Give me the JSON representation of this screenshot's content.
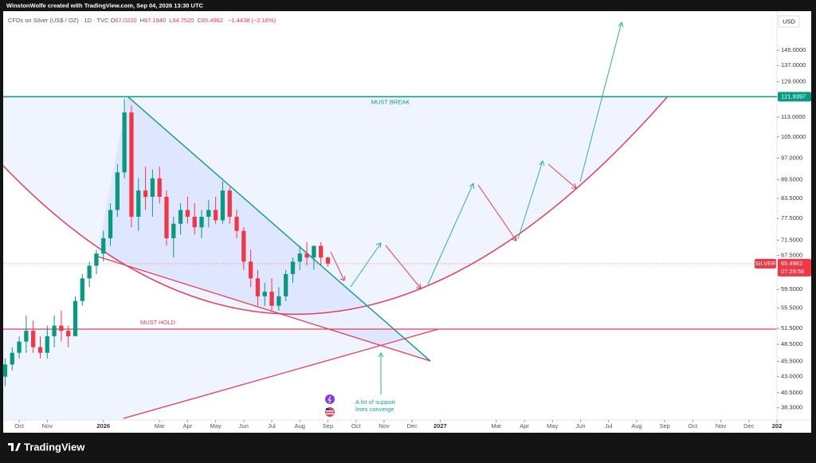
{
  "header": {
    "caption": "WinstonWolfe created with TradingView.com, Sep 04, 2026 13:30 UTC"
  },
  "footer": {
    "brand": "TradingView"
  },
  "chart_data": {
    "type": "candlestick",
    "symbol_text": "CFDs on Silver (US$ / OZ) · 1D · TVC",
    "ohlc": [
      {
        "label": "O",
        "value": "67.0220"
      },
      {
        "label": "H",
        "value": "67.1940"
      },
      {
        "label": "L",
        "value": "64.7520"
      },
      {
        "label": "C",
        "value": "65.4962"
      }
    ],
    "change": "−1.4438 (−2.16%)",
    "currency": "USD",
    "log_scale": true,
    "grid": false,
    "up_color": "#089981",
    "down_color": "#f23645",
    "x": [
      -0.5,
      -0.25,
      0,
      0.25,
      0.5,
      0.75,
      1,
      1.25,
      1.5,
      1.75,
      2,
      2.25,
      2.5,
      2.75,
      3,
      3.25,
      3.5,
      3.75,
      4,
      4.25,
      4.5,
      4.75,
      5,
      5.25,
      5.5,
      5.75,
      6,
      6.25,
      6.5,
      6.75,
      7,
      7.25,
      7.5,
      7.75,
      8,
      8.25,
      8.5,
      8.75,
      9,
      9.25,
      9.5,
      9.75,
      10,
      10.25,
      10.5,
      10.75,
      11
    ],
    "open": [
      43,
      45,
      47,
      49,
      51,
      48,
      47,
      50,
      52,
      51,
      50,
      57,
      62,
      65,
      68,
      72,
      80,
      92,
      115,
      78,
      86,
      84,
      90,
      84,
      72,
      76,
      80,
      78,
      75,
      78,
      80,
      77,
      86,
      78,
      74,
      66,
      62,
      58,
      59,
      56,
      58,
      63,
      66,
      68,
      67,
      70,
      67.022
    ],
    "high": [
      46,
      48,
      50,
      54,
      53,
      50,
      52,
      54,
      55,
      52,
      58,
      63,
      66,
      69,
      74,
      82,
      95,
      121,
      118,
      90,
      94,
      93,
      94,
      86,
      78,
      82,
      84,
      82,
      80,
      83,
      84,
      89,
      87,
      80,
      75,
      69,
      64,
      61,
      62,
      60,
      64,
      67,
      70,
      71,
      69,
      71,
      67.194
    ],
    "low": [
      41.5,
      44,
      46,
      47,
      47,
      46,
      46,
      48,
      49,
      48,
      50,
      56,
      60,
      63,
      66,
      70,
      78,
      90,
      75,
      74,
      80,
      78,
      82,
      70,
      67,
      73,
      76,
      73,
      72,
      75,
      76,
      76,
      76,
      72,
      64,
      60,
      56,
      56,
      55,
      55,
      57,
      61,
      64,
      65,
      64,
      65,
      64.752
    ],
    "close": [
      45,
      47,
      49,
      51,
      48,
      47,
      50,
      52,
      51,
      50,
      57,
      62,
      65,
      68,
      72,
      80,
      92,
      115,
      78,
      86,
      84,
      90,
      84,
      72,
      76,
      80,
      78,
      75,
      78,
      80,
      77,
      86,
      78,
      74,
      66,
      62,
      58,
      59,
      56,
      58,
      63,
      66,
      68,
      67,
      70,
      67,
      65.4962
    ],
    "xlim": [
      -0.57,
      27.0
    ],
    "xticks": [
      {
        "value": 0,
        "label": "Oct"
      },
      {
        "value": 1,
        "label": "Nov"
      },
      {
        "value": 3,
        "label": "2026"
      },
      {
        "value": 5,
        "label": "Mar"
      },
      {
        "value": 6,
        "label": "Apr"
      },
      {
        "value": 7,
        "label": "May"
      },
      {
        "value": 8,
        "label": "Jun"
      },
      {
        "value": 9,
        "label": "Jul"
      },
      {
        "value": 10,
        "label": "Aug"
      },
      {
        "value": 11,
        "label": "Sep"
      },
      {
        "value": 12,
        "label": "Oct"
      },
      {
        "value": 13,
        "label": "Nov"
      },
      {
        "value": 14,
        "label": "Dec"
      },
      {
        "value": 15,
        "label": "2027"
      },
      {
        "value": 17,
        "label": "Mar"
      },
      {
        "value": 18,
        "label": "Apr"
      },
      {
        "value": 19,
        "label": "May"
      },
      {
        "value": 20,
        "label": "Jun"
      },
      {
        "value": 21,
        "label": "Jul"
      },
      {
        "value": 22,
        "label": "Aug"
      },
      {
        "value": 23,
        "label": "Sep"
      },
      {
        "value": 24,
        "label": "Oct"
      },
      {
        "value": 25,
        "label": "Nov"
      },
      {
        "value": 26,
        "label": "Dec"
      },
      {
        "value": 27,
        "label": "202"
      }
    ],
    "ylim": [
      36.6,
      167.7
    ],
    "yticks": [
      {
        "value": 145,
        "label": "145.0000"
      },
      {
        "value": 137,
        "label": "137.0000"
      },
      {
        "value": 129,
        "label": "129.0000"
      },
      {
        "value": 113,
        "label": "113.0000"
      },
      {
        "value": 105,
        "label": "105.0000"
      },
      {
        "value": 97,
        "label": "97.0000"
      },
      {
        "value": 89.5,
        "label": "89.5000"
      },
      {
        "value": 83.5,
        "label": "83.5000"
      },
      {
        "value": 77.5,
        "label": "77.5000"
      },
      {
        "value": 71.5,
        "label": "71.5000"
      },
      {
        "value": 67.5,
        "label": "67.5000"
      },
      {
        "value": 59.5,
        "label": "59.5000"
      },
      {
        "value": 55.5,
        "label": "55.5000"
      },
      {
        "value": 51.5,
        "label": "51.5000"
      },
      {
        "value": 48.5,
        "label": "48.5000"
      },
      {
        "value": 45.5,
        "label": "45.5000"
      },
      {
        "value": 43,
        "label": "43.0000"
      },
      {
        "value": 40.5,
        "label": "40.5000"
      },
      {
        "value": 38.3,
        "label": "38.3000"
      }
    ],
    "levels": [
      {
        "value": 121.9397,
        "label": "MUST BREAK",
        "color": "#089981"
      }
    ],
    "last_price": {
      "symbol": "SILVER",
      "value": 65.4962,
      "countdown": "07:29:58",
      "color": "#f23645"
    },
    "annotations": {
      "hold": "MUST HOLD",
      "converge": [
        "A lot of support",
        "lines converge"
      ]
    }
  }
}
